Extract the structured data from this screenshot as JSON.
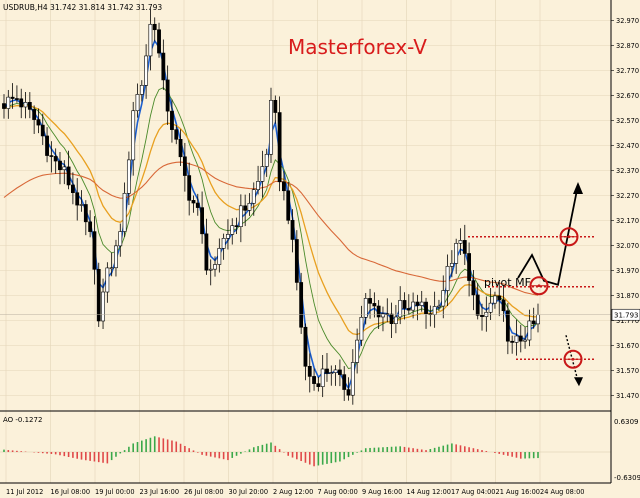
{
  "chart_data": {
    "type": "candlestick",
    "symbol_header": "USDRUB,H4  31.742 31.814 31.742 31.793",
    "watermark": "Masterforex-V",
    "annotation_text": "pivot MF",
    "current_price": 31.793,
    "current_price_label": "31.793",
    "price_axis": {
      "range": [
        31.42,
        33.02
      ],
      "ticks": [
        "32.970",
        "32.870",
        "32.770",
        "32.670",
        "32.570",
        "32.470",
        "32.370",
        "32.270",
        "32.170",
        "32.070",
        "31.970",
        "31.870",
        "31.770",
        "31.670",
        "31.570",
        "31.470"
      ]
    },
    "time_axis": {
      "labels": [
        "11 Jul 2012",
        "16 Jul 08:00",
        "19 Jul 00:00",
        "23 Jul 16:00",
        "26 Jul 08:00",
        "30 Jul 20:00",
        "2 Aug 12:00",
        "7 Aug 00:00",
        "9 Aug 16:00",
        "14 Aug 12:00",
        "17 Aug 04:00",
        "21 Aug 16:00",
        "24 Aug 08:00"
      ]
    },
    "price_series_anchors": [
      [
        0,
        32.64
      ],
      [
        3,
        32.66
      ],
      [
        5,
        32.62
      ],
      [
        8,
        32.55
      ],
      [
        11,
        32.42
      ],
      [
        14,
        32.36
      ],
      [
        17,
        32.25
      ],
      [
        20,
        32.1
      ],
      [
        22,
        31.8
      ],
      [
        24,
        31.95
      ],
      [
        26,
        32.05
      ],
      [
        28,
        32.25
      ],
      [
        30,
        32.62
      ],
      [
        32,
        32.72
      ],
      [
        34,
        32.95
      ],
      [
        35,
        32.96
      ],
      [
        37,
        32.7
      ],
      [
        39,
        32.55
      ],
      [
        41,
        32.4
      ],
      [
        43,
        32.28
      ],
      [
        45,
        32.2
      ],
      [
        47,
        32.0
      ],
      [
        49,
        31.96
      ],
      [
        51,
        32.1
      ],
      [
        53,
        32.15
      ],
      [
        55,
        32.2
      ],
      [
        57,
        32.25
      ],
      [
        59,
        32.32
      ],
      [
        61,
        32.45
      ],
      [
        62,
        32.62
      ],
      [
        63,
        32.57
      ],
      [
        64,
        32.35
      ],
      [
        66,
        32.2
      ],
      [
        68,
        31.92
      ],
      [
        70,
        31.58
      ],
      [
        72,
        31.52
      ],
      [
        74,
        31.56
      ],
      [
        76,
        31.58
      ],
      [
        78,
        31.52
      ],
      [
        80,
        31.5
      ],
      [
        82,
        31.7
      ],
      [
        84,
        31.84
      ],
      [
        86,
        31.82
      ],
      [
        88,
        31.8
      ],
      [
        90,
        31.78
      ],
      [
        92,
        31.82
      ],
      [
        94,
        31.8
      ],
      [
        96,
        31.84
      ],
      [
        98,
        31.8
      ],
      [
        100,
        31.82
      ],
      [
        102,
        31.9
      ],
      [
        104,
        32.02
      ],
      [
        106,
        32.08
      ],
      [
        108,
        31.96
      ],
      [
        110,
        31.76
      ],
      [
        112,
        31.8
      ],
      [
        114,
        31.86
      ],
      [
        116,
        31.78
      ],
      [
        118,
        31.66
      ],
      [
        120,
        31.7
      ],
      [
        123,
        31.75
      ],
      [
        124,
        31.79
      ]
    ],
    "ao_indicator": {
      "label": "AO -0.1272",
      "current_value": -0.1272,
      "axis_ticks": [
        "0.6309",
        "-0.6309"
      ],
      "anchors": [
        [
          0,
          0.05
        ],
        [
          12,
          -0.05
        ],
        [
          18,
          -0.16
        ],
        [
          24,
          -0.24
        ],
        [
          30,
          0.18
        ],
        [
          35,
          0.33
        ],
        [
          40,
          0.22
        ],
        [
          46,
          -0.06
        ],
        [
          52,
          -0.17
        ],
        [
          58,
          0.1
        ],
        [
          62,
          0.2
        ],
        [
          66,
          -0.08
        ],
        [
          72,
          -0.3
        ],
        [
          78,
          -0.2
        ],
        [
          84,
          0.08
        ],
        [
          92,
          0.12
        ],
        [
          98,
          0.04
        ],
        [
          104,
          0.18
        ],
        [
          110,
          0.06
        ],
        [
          116,
          -0.06
        ],
        [
          120,
          -0.14
        ],
        [
          124,
          -0.1272
        ]
      ]
    },
    "moving_averages": [
      {
        "color": "#1c5fd0"
      },
      {
        "color": "#4a8a2a"
      },
      {
        "color": "#e8a020"
      },
      {
        "color": "#d86838"
      }
    ],
    "levels": [
      {
        "price": 32.105,
        "color": "#c81818"
      },
      {
        "price": 31.905,
        "color": "#c81818"
      },
      {
        "price": 31.615,
        "color": "#c81818"
      }
    ],
    "colors": {
      "background": "#fbf1da",
      "grid": "#e3d6b8",
      "candle": "#000000",
      "ao_up": "#3aa84a",
      "ao_down": "#e04848",
      "watermark": "#d81c1c",
      "circle": "#c81818"
    }
  }
}
